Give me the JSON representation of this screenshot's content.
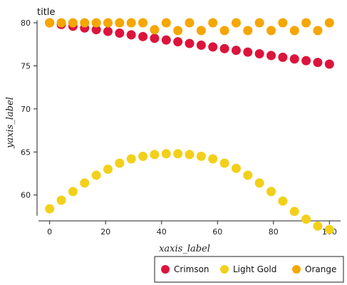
{
  "chart_data": {
    "type": "scatter",
    "title": "title",
    "xlabel": "xaxis_label",
    "ylabel": "yaxis_label",
    "xlim": [
      0,
      100
    ],
    "ylim": [
      57,
      80
    ],
    "xticks": [
      0,
      20,
      40,
      60,
      80,
      100
    ],
    "yticks": [
      60,
      65,
      70,
      75,
      80
    ],
    "grid": false,
    "legend_position": "bottom-right",
    "x": [
      0,
      4.17,
      8.33,
      12.5,
      16.67,
      20.83,
      25,
      29.17,
      33.33,
      37.5,
      41.67,
      45.83,
      50,
      54.17,
      58.33,
      62.5,
      66.67,
      70.83,
      75,
      79.17,
      83.33,
      87.5,
      91.67,
      95.83,
      100
    ],
    "series": [
      {
        "name": "Crimson",
        "color": "#dc143c",
        "values": [
          80.0,
          79.8,
          79.6,
          79.4,
          79.2,
          79.0,
          78.8,
          78.6,
          78.4,
          78.2,
          78.0,
          77.8,
          77.6,
          77.4,
          77.2,
          77.0,
          76.8,
          76.6,
          76.4,
          76.2,
          76.0,
          75.8,
          75.6,
          75.4,
          75.2
        ]
      },
      {
        "name": "Light Gold",
        "color": "#f2d01a",
        "values": [
          58.4,
          59.4,
          60.4,
          61.4,
          62.3,
          63.0,
          63.7,
          64.2,
          64.5,
          64.7,
          64.8,
          64.8,
          64.7,
          64.5,
          64.2,
          63.7,
          63.1,
          62.3,
          61.4,
          60.4,
          59.3,
          58.1,
          57.2,
          56.4,
          56.0
        ]
      },
      {
        "name": "Orange",
        "color": "#f5a600",
        "values": [
          80.0,
          80.0,
          80.0,
          80.0,
          80.0,
          80.0,
          80.0,
          80.0,
          80.0,
          79.2,
          80.0,
          79.1,
          80.0,
          79.1,
          80.0,
          79.1,
          80.0,
          79.1,
          80.0,
          79.1,
          80.0,
          79.1,
          80.0,
          79.1,
          80.0
        ]
      }
    ]
  }
}
